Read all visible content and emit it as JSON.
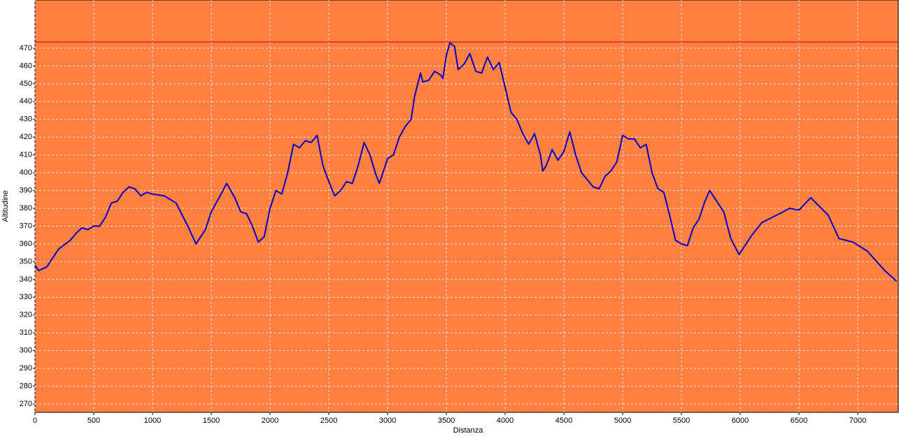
{
  "chart_data": {
    "type": "line",
    "x_label": "Distanza",
    "y_label": "Altitudine",
    "x": [
      0,
      30,
      100,
      150,
      200,
      300,
      350,
      400,
      450,
      500,
      550,
      600,
      650,
      700,
      750,
      800,
      850,
      900,
      950,
      1000,
      1100,
      1200,
      1300,
      1370,
      1450,
      1500,
      1550,
      1600,
      1630,
      1700,
      1750,
      1800,
      1850,
      1900,
      1950,
      2000,
      2050,
      2100,
      2150,
      2200,
      2250,
      2300,
      2350,
      2400,
      2450,
      2500,
      2550,
      2600,
      2650,
      2700,
      2750,
      2800,
      2850,
      2900,
      2930,
      3000,
      3050,
      3100,
      3150,
      3200,
      3230,
      3280,
      3300,
      3350,
      3400,
      3450,
      3470,
      3500,
      3530,
      3570,
      3600,
      3650,
      3700,
      3750,
      3800,
      3850,
      3900,
      3950,
      4000,
      4050,
      4100,
      4150,
      4200,
      4250,
      4300,
      4320,
      4350,
      4400,
      4450,
      4500,
      4550,
      4600,
      4650,
      4700,
      4750,
      4800,
      4850,
      4900,
      4950,
      5000,
      5050,
      5100,
      5150,
      5200,
      5250,
      5300,
      5350,
      5400,
      5450,
      5500,
      5550,
      5600,
      5650,
      5700,
      5740,
      5860,
      5920,
      5990,
      6100,
      6185,
      6365,
      6420,
      6500,
      6600,
      6750,
      6840,
      6960,
      7080,
      7230,
      7330
    ],
    "series": [
      {
        "name": "Altitudine",
        "color": "#0000c8",
        "values": [
          348,
          345,
          347,
          352,
          357,
          362,
          366,
          369,
          368,
          370,
          370,
          375,
          383,
          384,
          389,
          392,
          391,
          387,
          389,
          388,
          387,
          383,
          370,
          360,
          368,
          378,
          384,
          390,
          394,
          386,
          378,
          377,
          370,
          361,
          364,
          380,
          390,
          388,
          400,
          416,
          414,
          418,
          417,
          421,
          404,
          395,
          387,
          390,
          395,
          394,
          404,
          417,
          410,
          399,
          394,
          408,
          410,
          420,
          426,
          430,
          443,
          456,
          451,
          452,
          457,
          455,
          453,
          466,
          473,
          471,
          458,
          461,
          467,
          457,
          456,
          465,
          458,
          462,
          448,
          434,
          430,
          422,
          416,
          422,
          410,
          401,
          404,
          413,
          407,
          412,
          423,
          410,
          400,
          396,
          392,
          391,
          398,
          401,
          406,
          421,
          419,
          419,
          414,
          416,
          400,
          391,
          389,
          376,
          362,
          360,
          359,
          369,
          374,
          384,
          390,
          378,
          363,
          354,
          365,
          372,
          378,
          380,
          379,
          386,
          376,
          363,
          361,
          356,
          345,
          339
        ]
      }
    ],
    "max_line": 473.5,
    "max_line_color": "#c00000",
    "background": "#ff8040",
    "xlim": [
      0,
      7345
    ],
    "xticks": [
      0,
      500,
      1000,
      1500,
      2000,
      2500,
      3000,
      3500,
      4000,
      4500,
      5000,
      5500,
      6000,
      6500,
      7000
    ],
    "ylim": [
      265.3,
      497.1
    ],
    "yticks": [
      270,
      280,
      290,
      300,
      310,
      320,
      330,
      340,
      350,
      360,
      370,
      380,
      390,
      400,
      410,
      420,
      430,
      440,
      450,
      460,
      470
    ],
    "grid": true
  }
}
